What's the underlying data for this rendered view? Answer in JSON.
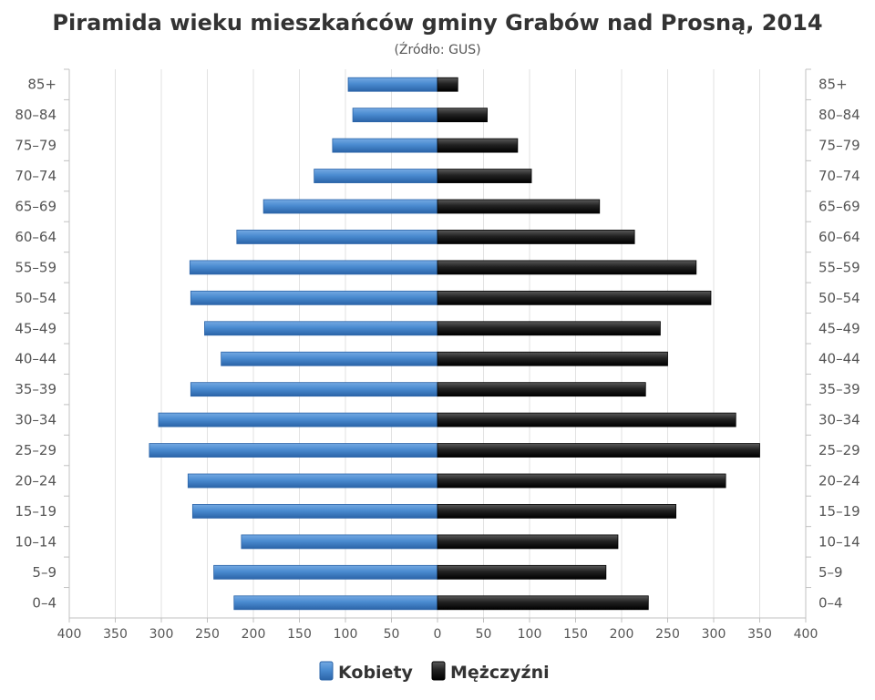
{
  "chart_data": {
    "type": "bar",
    "orientation": "horizontal-pyramid",
    "title": "Piramida wieku mieszkańców gminy Grabów nad Prosną, 2014",
    "subtitle": "(Źródło: GUS)",
    "categories": [
      "85+",
      "80–84",
      "75–79",
      "70–74",
      "65–69",
      "60–64",
      "55–59",
      "50–54",
      "45–49",
      "40–44",
      "35–39",
      "30–34",
      "25–29",
      "20–24",
      "15–19",
      "10–14",
      "5–9",
      "0–4"
    ],
    "series": [
      {
        "name": "Kobiety",
        "side": "left",
        "color": "#3b7cc4",
        "values": [
          97,
          92,
          114,
          134,
          189,
          218,
          269,
          268,
          253,
          235,
          268,
          303,
          313,
          271,
          266,
          213,
          243,
          221
        ]
      },
      {
        "name": "Mężczyźni",
        "side": "right",
        "color": "#111111",
        "values": [
          22,
          54,
          87,
          102,
          176,
          214,
          281,
          297,
          242,
          250,
          226,
          324,
          350,
          313,
          259,
          196,
          183,
          229
        ]
      }
    ],
    "xlim": [
      -400,
      400
    ],
    "x_ticks": [
      "400",
      "350",
      "300",
      "250",
      "200",
      "150",
      "100",
      "50",
      "0",
      "50",
      "100",
      "150",
      "200",
      "250",
      "300",
      "350",
      "400"
    ],
    "grid": true,
    "legend_position": "bottom-center"
  },
  "colors": {
    "female": "#3b7cc4",
    "male": "#111111",
    "grid": "#dcdcdc",
    "text": "#555555"
  }
}
